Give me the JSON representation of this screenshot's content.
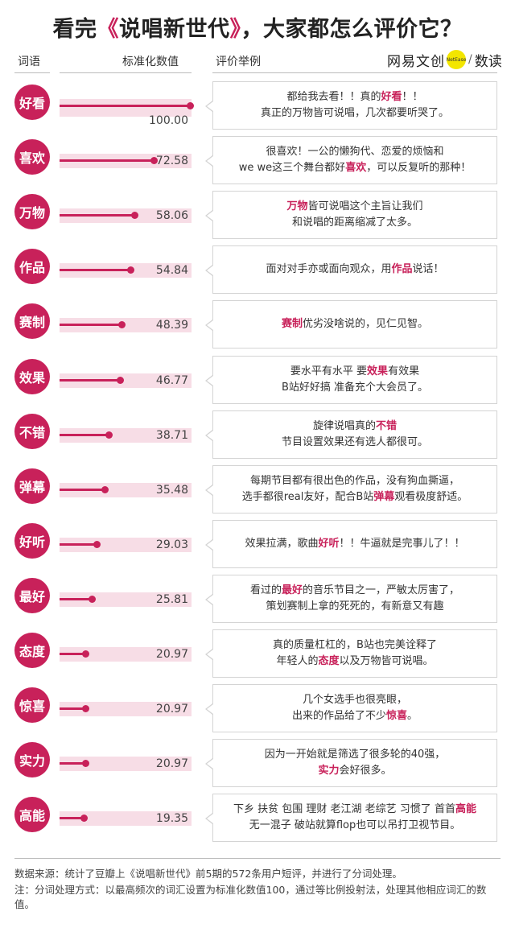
{
  "title": {
    "prefix": "看完",
    "open": "《",
    "show": "说唱新世代",
    "close": "》",
    "suffix": "，大家都怎么评价它？"
  },
  "headers": {
    "word": "词语",
    "value": "标准化数值",
    "example": "评价举例"
  },
  "logo": {
    "main": "网易文创",
    "dot": "NetEase",
    "slash": "/",
    "sub": "数读"
  },
  "chart_data": {
    "type": "bar",
    "orientation": "horizontal",
    "categories": [
      "好看",
      "喜欢",
      "万物",
      "作品",
      "赛制",
      "效果",
      "不错",
      "弹幕",
      "好听",
      "最好",
      "态度",
      "惊喜",
      "实力",
      "高能"
    ],
    "values": [
      100.0,
      72.58,
      58.06,
      54.84,
      48.39,
      46.77,
      38.71,
      35.48,
      29.03,
      25.81,
      20.97,
      20.97,
      20.97,
      19.35
    ],
    "value_labels": [
      "100.00",
      "72.58",
      "58.06",
      "54.84",
      "48.39",
      "46.77",
      "38.71",
      "35.48",
      "29.03",
      "25.81",
      "20.97",
      "20.97",
      "20.97",
      "19.35"
    ],
    "xlim": [
      0,
      100
    ],
    "ylabel": "词语",
    "xlabel": "标准化数值",
    "accent_color": "#c8215a",
    "track_color": "#f7dde6"
  },
  "quotes": [
    [
      [
        {
          "t": "都给我去看！！真的"
        },
        {
          "t": "好看",
          "hl": true
        },
        {
          "t": "！！"
        }
      ],
      [
        {
          "t": "真正的万物皆可说唱，几次都要听哭了。"
        }
      ]
    ],
    [
      [
        {
          "t": "很喜欢！一公的懒狗代、恋爱的烦恼和"
        }
      ],
      [
        {
          "t": "we we这三个舞台都好"
        },
        {
          "t": "喜欢",
          "hl": true
        },
        {
          "t": "，可以反复听的那种！"
        }
      ]
    ],
    [
      [
        {
          "t": "万物",
          "hl": true
        },
        {
          "t": "皆可说唱这个主旨让我们"
        }
      ],
      [
        {
          "t": "和说唱的距离缩减了太多。"
        }
      ]
    ],
    [
      [
        {
          "t": "面对对手亦或面向观众，用"
        },
        {
          "t": "作品",
          "hl": true
        },
        {
          "t": "说话！"
        }
      ]
    ],
    [
      [
        {
          "t": "赛制",
          "hl": true
        },
        {
          "t": "优劣没啥说的，见仁见智。"
        }
      ]
    ],
    [
      [
        {
          "t": "要水平有水平 要"
        },
        {
          "t": "效果",
          "hl": true
        },
        {
          "t": "有效果"
        }
      ],
      [
        {
          "t": "B站好好搞 准备充个大会员了。"
        }
      ]
    ],
    [
      [
        {
          "t": "旋律说唱真的"
        },
        {
          "t": "不错",
          "hl": true
        }
      ],
      [
        {
          "t": "节目设置效果还有选人都很可。"
        }
      ]
    ],
    [
      [
        {
          "t": "每期节目都有很出色的作品，没有狗血撕逼，"
        }
      ],
      [
        {
          "t": "选手都很real友好，配合B站"
        },
        {
          "t": "弹幕",
          "hl": true
        },
        {
          "t": "观看极度舒适。"
        }
      ]
    ],
    [
      [
        {
          "t": "效果拉满，歌曲"
        },
        {
          "t": "好听",
          "hl": true
        },
        {
          "t": "！！牛逼就是完事儿了！！"
        }
      ]
    ],
    [
      [
        {
          "t": "看过的"
        },
        {
          "t": "最好",
          "hl": true
        },
        {
          "t": "的音乐节目之一，严敏太厉害了，"
        }
      ],
      [
        {
          "t": "策划赛制上拿的死死的，有新意又有趣"
        }
      ]
    ],
    [
      [
        {
          "t": "真的质量杠杠的，B站也完美诠释了"
        }
      ],
      [
        {
          "t": "年轻人的"
        },
        {
          "t": "态度",
          "hl": true
        },
        {
          "t": "以及万物皆可说唱。"
        }
      ]
    ],
    [
      [
        {
          "t": "几个女选手也很亮眼，"
        }
      ],
      [
        {
          "t": "出来的作品给了不少"
        },
        {
          "t": "惊喜",
          "hl": true
        },
        {
          "t": "。"
        }
      ]
    ],
    [
      [
        {
          "t": "因为一开始就是筛选了很多轮的40强，"
        }
      ],
      [
        {
          "t": "实力",
          "hl": true
        },
        {
          "t": "会好很多。"
        }
      ]
    ],
    [
      [
        {
          "t": "下乡 扶贫 包围 理财 老江湖 老综艺 习惯了 首首"
        },
        {
          "t": "高能",
          "hl": true
        }
      ],
      [
        {
          "t": "无一混子 破站就算flop也可以吊打卫视节目。"
        }
      ]
    ]
  ],
  "footer": {
    "source": "数据来源：统计了豆瓣上《说唱新世代》前5期的572条用户短评，并进行了分词处理。",
    "note": "注：分词处理方式：以最高频次的词汇设置为标准化数值100，通过等比例投射法，处理其他相应词汇的数值。"
  }
}
